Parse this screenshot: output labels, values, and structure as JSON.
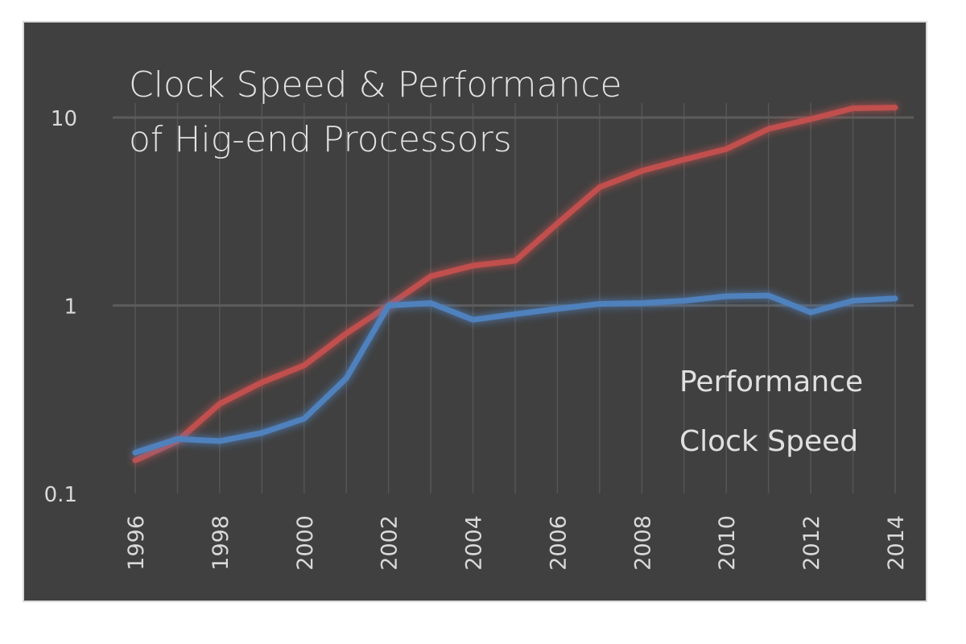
{
  "chart_data": {
    "type": "line",
    "title": "Clock Speed & Performance of Hig-end Processors",
    "title_lines": [
      "Clock Speed & Performance",
      "of Hig-end Processors"
    ],
    "xlabel": "",
    "ylabel": "",
    "y_scale": "log",
    "ylim": [
      0.1,
      10
    ],
    "y_ticks": [
      0.1,
      1,
      10
    ],
    "y_tick_labels": [
      "0.1",
      "1",
      "10"
    ],
    "x": [
      1996,
      1997,
      1998,
      1999,
      2000,
      2001,
      2002,
      2003,
      2004,
      2005,
      2006,
      2007,
      2008,
      2009,
      2010,
      2011,
      2012,
      2013,
      2014
    ],
    "x_tick_labels": [
      "1996",
      "1998",
      "2000",
      "2002",
      "2004",
      "2006",
      "2008",
      "2010",
      "2012",
      "2014"
    ],
    "grid": true,
    "legend_position": "right",
    "series": [
      {
        "name": "Performance",
        "color": "#c0504d",
        "values": [
          0.15,
          0.19,
          0.3,
          0.39,
          0.48,
          0.71,
          1.0,
          1.43,
          1.63,
          1.73,
          2.73,
          4.26,
          5.2,
          5.97,
          6.8,
          8.7,
          9.8,
          11.2,
          11.3
        ]
      },
      {
        "name": "Clock Speed",
        "color": "#4f81bd",
        "values": [
          0.165,
          0.195,
          0.19,
          0.21,
          0.25,
          0.41,
          1.0,
          1.03,
          0.84,
          0.9,
          0.96,
          1.02,
          1.03,
          1.06,
          1.12,
          1.13,
          0.92,
          1.06,
          1.09
        ]
      }
    ]
  }
}
